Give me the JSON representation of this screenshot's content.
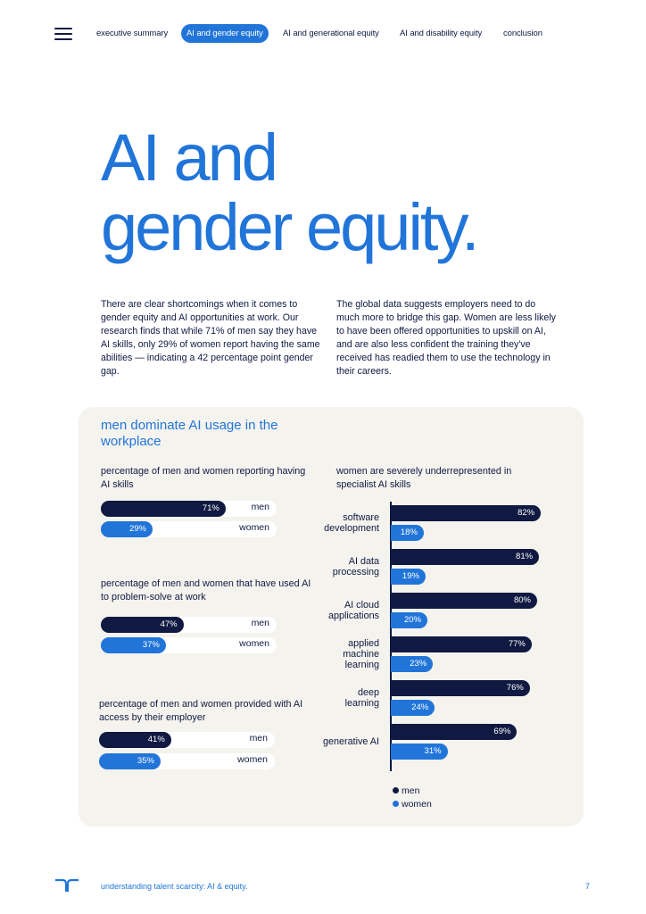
{
  "nav": {
    "items": [
      {
        "label": "executive summary",
        "active": false
      },
      {
        "label": "AI and gender equity",
        "active": true
      },
      {
        "label": "AI and generational equity",
        "active": false
      },
      {
        "label": "AI and disability equity",
        "active": false
      },
      {
        "label": "conclusion",
        "active": false
      }
    ]
  },
  "title": {
    "line1": "AI and",
    "line2": "gender equity."
  },
  "intro": {
    "left": "There are clear shortcomings when it comes to gender equity and AI opportunities at work. Our research finds that while 71% of men say they have AI skills, only 29% of women report having the same abilities — indicating a 42 percentage point gender gap.",
    "right": "The global data suggests employers need to do much more to bridge this gap. Women are less likely to have been offered opportunities to upskill on AI, and are also less confident the training they've received has readied them to use the technology in their careers."
  },
  "card_title": "men dominate AI usage in the workplace",
  "colors": {
    "men": "#0f1941",
    "women": "#2175d9",
    "accent": "#2175d9",
    "card": "#f5f3ee"
  },
  "chart_data": [
    {
      "type": "bar",
      "title": "percentage of men and women reporting having AI skills",
      "categories": [
        "men",
        "women"
      ],
      "values": [
        71,
        29
      ],
      "labels": [
        "71%",
        "29%"
      ],
      "ylim": [
        0,
        100
      ]
    },
    {
      "type": "bar",
      "title": "percentage of men and women that have used AI to problem-solve at work",
      "categories": [
        "men",
        "women"
      ],
      "values": [
        47,
        37
      ],
      "labels": [
        "47%",
        "37%"
      ],
      "ylim": [
        0,
        100
      ]
    },
    {
      "type": "bar",
      "title": "percentage of men and women provided with AI access by their employer",
      "categories": [
        "men",
        "women"
      ],
      "values": [
        41,
        35
      ],
      "labels": [
        "41%",
        "35%"
      ],
      "ylim": [
        0,
        100
      ]
    },
    {
      "type": "bar",
      "title": "women are severely underrepresented in specialist AI skills",
      "categories": [
        [
          "software",
          "development"
        ],
        [
          "AI data",
          "processing"
        ],
        [
          "AI cloud",
          "applications"
        ],
        [
          "applied",
          "machine",
          "learning"
        ],
        [
          "deep",
          "learning"
        ],
        [
          "generative AI"
        ]
      ],
      "series": [
        {
          "name": "men",
          "values": [
            82,
            81,
            80,
            77,
            76,
            69
          ],
          "labels": [
            "82%",
            "81%",
            "80%",
            "77%",
            "76%",
            "69%"
          ]
        },
        {
          "name": "women",
          "values": [
            18,
            19,
            20,
            23,
            24,
            31
          ],
          "labels": [
            "18%",
            "19%",
            "20%",
            "23%",
            "24%",
            "31%"
          ]
        }
      ],
      "legend": [
        "men",
        "women"
      ],
      "ylim": [
        0,
        100
      ]
    }
  ],
  "footer": {
    "text": "understanding talent scarcity: AI & equity.",
    "page": "7"
  }
}
